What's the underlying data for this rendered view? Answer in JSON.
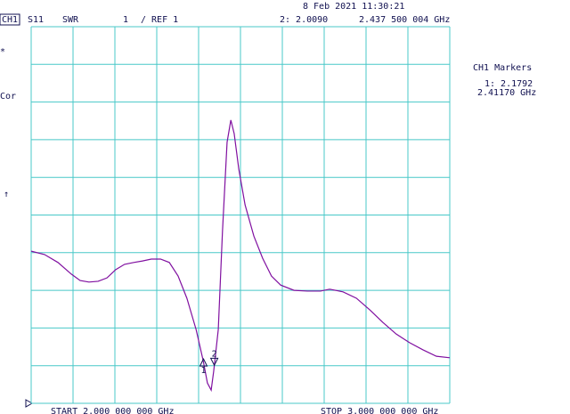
{
  "chart_data": {
    "type": "line",
    "channel": "CH1",
    "parameter": "S11",
    "format": "SWR",
    "scale": "1",
    "reference": "/ REF 1",
    "timestamp": "8 Feb 2021  11:30:21",
    "active_marker_value": "2: 2.0090",
    "active_marker_freq": "2.437 500 004 GHz",
    "markers_title": "CH1 Markers",
    "marker_readout_value": "1: 2.1792",
    "marker_readout_freq": "2.41170 GHz",
    "side_labels": [
      "*",
      "Cor",
      "↑"
    ],
    "start": "START 2.000 000 000 GHz",
    "stop": "STOP 3.000 000 000 GHz",
    "x": [
      2.0,
      2.032,
      2.064,
      2.096,
      2.117,
      2.138,
      2.16,
      2.181,
      2.202,
      2.223,
      2.245,
      2.266,
      2.287,
      2.309,
      2.33,
      2.351,
      2.372,
      2.394,
      2.411,
      2.421,
      2.43,
      2.436,
      2.447,
      2.457,
      2.468,
      2.477,
      2.485,
      2.496,
      2.511,
      2.532,
      2.553,
      2.574,
      2.596,
      2.628,
      2.66,
      2.691,
      2.713,
      2.745,
      2.777,
      2.809,
      2.84,
      2.872,
      2.904,
      2.936,
      2.968,
      3.0
    ],
    "series": [
      {
        "name": "S11",
        "color": "#8010a0",
        "values": [
          5.04,
          4.95,
          4.74,
          4.43,
          4.26,
          4.22,
          4.24,
          4.33,
          4.55,
          4.69,
          4.74,
          4.78,
          4.83,
          4.83,
          4.74,
          4.38,
          3.79,
          2.96,
          2.13,
          1.54,
          1.35,
          1.85,
          2.96,
          5.56,
          7.93,
          8.52,
          8.16,
          7.22,
          6.27,
          5.44,
          4.85,
          4.38,
          4.14,
          4.0,
          3.98,
          3.98,
          4.03,
          3.96,
          3.79,
          3.48,
          3.15,
          2.84,
          2.61,
          2.42,
          2.25,
          2.21
        ]
      }
    ],
    "markers": [
      {
        "label": "1",
        "x": 2.4117,
        "value": 2.1792
      },
      {
        "label": "2",
        "x": 2.4375,
        "value": 2.009
      }
    ],
    "xlim": [
      2.0,
      3.0
    ],
    "ylim": [
      1,
      11
    ],
    "xticks": [
      2.0,
      2.1,
      2.2,
      2.3,
      2.4,
      2.5,
      2.6,
      2.7,
      2.8,
      2.9,
      3.0
    ],
    "yticks": [
      1,
      2,
      3,
      4,
      5,
      6,
      7,
      8,
      9,
      10,
      11
    ],
    "grid": true
  }
}
